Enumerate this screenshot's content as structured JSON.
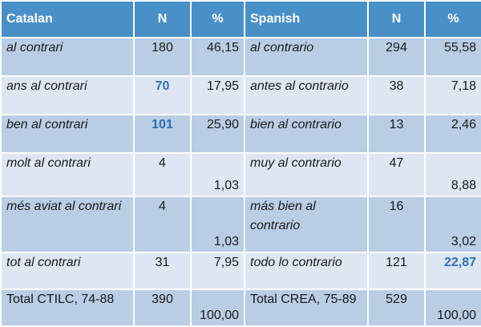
{
  "header": {
    "catalan": "Catalan",
    "n1": "N",
    "pct1": "%",
    "spanish": "Spanish",
    "n2": "N",
    "pct2": "%"
  },
  "rows": [
    {
      "ca": "al contrari",
      "ca_n": "180",
      "ca_pct": "46,15",
      "es": "al contrario",
      "es_n": "294",
      "es_pct": "55,58"
    },
    {
      "ca": "ans al contrari",
      "ca_n": "70",
      "ca_pct": "17,95",
      "es": "antes al contrario",
      "es_n": "38",
      "es_pct": "7,18"
    },
    {
      "ca": "ben al contrari",
      "ca_n": "101",
      "ca_pct": "25,90",
      "es": "bien al contrario",
      "es_n": "13",
      "es_pct": "2,46"
    },
    {
      "ca": "molt al contrari",
      "ca_n": "4",
      "ca_pct": "1,03",
      "es": "muy al contrario",
      "es_n": "47",
      "es_pct": "8,88"
    },
    {
      "ca": "més aviat al contrari",
      "ca_n": "4",
      "ca_pct": "1,03",
      "es": "más bien al contrario",
      "es_n": "16",
      "es_pct": "3,02"
    },
    {
      "ca": "tot al contrari",
      "ca_n": "31",
      "ca_pct": "7,95",
      "es": "todo lo contrario",
      "es_n": "121",
      "es_pct": "22,87"
    },
    {
      "ca": "Total CTILC, 74-88",
      "ca_n": "390",
      "ca_pct": "100,00",
      "es": "Total CREA, 75-89",
      "es_n": "529",
      "es_pct": "100,00"
    }
  ],
  "colors": {
    "header_bg": "#4a90c8",
    "row_dark": "#b9cde4",
    "row_light": "#dde6f1",
    "highlight": "#2e6fb8"
  }
}
